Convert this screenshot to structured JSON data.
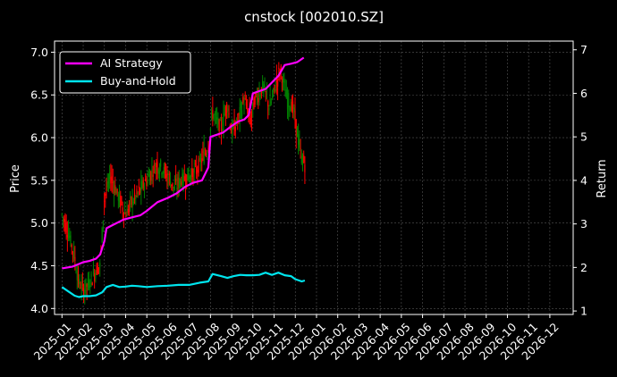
{
  "chart_data": {
    "type": "line",
    "title": "cnstock [002010.SZ]",
    "ylabel": "Price",
    "y2label": "Return",
    "ylim": [
      3.93,
      7.13
    ],
    "y2lim": [
      0.92,
      7.2
    ],
    "yticks": [
      "4.0",
      "4.5",
      "5.0",
      "5.5",
      "6.0",
      "6.5",
      "7.0"
    ],
    "ytick_values": [
      4.0,
      4.5,
      5.0,
      5.5,
      6.0,
      6.5,
      7.0
    ],
    "y2ticks": [
      "1",
      "2",
      "3",
      "4",
      "5",
      "6",
      "7"
    ],
    "y2tick_values": [
      1,
      2,
      3,
      4,
      5,
      6,
      7
    ],
    "xlim": [
      -0.35,
      24.1
    ],
    "xticks": [
      "2025-01",
      "2025-02",
      "2025-03",
      "2025-04",
      "2025-05",
      "2025-06",
      "2025-07",
      "2025-08",
      "2025-09",
      "2025-10",
      "2025-11",
      "2025-12",
      "2026-01",
      "2026-02",
      "2026-03",
      "2026-04",
      "2026-05",
      "2026-06",
      "2026-07",
      "2026-08",
      "2026-09",
      "2026-10",
      "2026-11",
      "2026-12"
    ],
    "grid": true,
    "legend_position": "top-left",
    "candle_up_color": "#008000",
    "candle_down_color": "#ff0000",
    "price_anchors": [
      [
        0.0,
        5.1
      ],
      [
        0.3,
        4.9
      ],
      [
        0.6,
        4.6
      ],
      [
        0.8,
        4.3
      ],
      [
        1.0,
        4.22
      ],
      [
        1.3,
        4.3
      ],
      [
        1.6,
        4.45
      ],
      [
        1.8,
        4.5
      ],
      [
        2.0,
        5.3
      ],
      [
        2.3,
        5.55
      ],
      [
        2.6,
        5.35
      ],
      [
        3.0,
        5.1
      ],
      [
        3.3,
        5.25
      ],
      [
        3.6,
        5.35
      ],
      [
        4.0,
        5.5
      ],
      [
        4.5,
        5.7
      ],
      [
        5.0,
        5.55
      ],
      [
        5.3,
        5.4
      ],
      [
        5.6,
        5.5
      ],
      [
        6.0,
        5.55
      ],
      [
        6.3,
        5.6
      ],
      [
        6.6,
        5.75
      ],
      [
        6.9,
        5.9
      ],
      [
        7.1,
        6.3
      ],
      [
        7.5,
        6.1
      ],
      [
        7.8,
        6.4
      ],
      [
        8.0,
        6.05
      ],
      [
        8.3,
        6.2
      ],
      [
        8.6,
        6.45
      ],
      [
        8.9,
        6.2
      ],
      [
        9.1,
        6.45
      ],
      [
        9.5,
        6.6
      ],
      [
        9.8,
        6.35
      ],
      [
        10.0,
        6.55
      ],
      [
        10.3,
        6.8
      ],
      [
        10.6,
        6.45
      ],
      [
        10.9,
        6.35
      ],
      [
        11.1,
        6.05
      ],
      [
        11.3,
        5.75
      ],
      [
        11.45,
        5.7
      ]
    ],
    "series": [
      {
        "name": "AI Strategy",
        "axis": "right",
        "color": "#ff00ff",
        "points": [
          [
            0,
            1.98
          ],
          [
            0.5,
            2.02
          ],
          [
            0.8,
            2.08
          ],
          [
            1.0,
            2.12
          ],
          [
            1.3,
            2.15
          ],
          [
            1.6,
            2.2
          ],
          [
            1.8,
            2.3
          ],
          [
            2.0,
            2.6
          ],
          [
            2.1,
            2.9
          ],
          [
            2.5,
            3.0
          ],
          [
            2.9,
            3.1
          ],
          [
            3.3,
            3.15
          ],
          [
            3.7,
            3.2
          ],
          [
            4.0,
            3.3
          ],
          [
            4.5,
            3.5
          ],
          [
            5.0,
            3.6
          ],
          [
            5.4,
            3.7
          ],
          [
            5.8,
            3.85
          ],
          [
            6.2,
            3.95
          ],
          [
            6.6,
            4.0
          ],
          [
            6.9,
            4.3
          ],
          [
            7.0,
            5.0
          ],
          [
            7.3,
            5.05
          ],
          [
            7.6,
            5.1
          ],
          [
            8.0,
            5.25
          ],
          [
            8.3,
            5.35
          ],
          [
            8.6,
            5.4
          ],
          [
            8.8,
            5.5
          ],
          [
            9.0,
            6.0
          ],
          [
            9.3,
            6.05
          ],
          [
            9.6,
            6.1
          ],
          [
            10.0,
            6.3
          ],
          [
            10.2,
            6.4
          ],
          [
            10.5,
            6.65
          ],
          [
            10.8,
            6.68
          ],
          [
            11.1,
            6.72
          ],
          [
            11.4,
            6.82
          ]
        ]
      },
      {
        "name": "Buy-and-Hold",
        "axis": "right",
        "color": "#00e5ee",
        "points": [
          [
            0,
            1.55
          ],
          [
            0.3,
            1.45
          ],
          [
            0.6,
            1.35
          ],
          [
            0.8,
            1.32
          ],
          [
            1.0,
            1.34
          ],
          [
            1.3,
            1.34
          ],
          [
            1.6,
            1.36
          ],
          [
            1.9,
            1.43
          ],
          [
            2.1,
            1.55
          ],
          [
            2.4,
            1.6
          ],
          [
            2.7,
            1.55
          ],
          [
            3.0,
            1.56
          ],
          [
            3.3,
            1.58
          ],
          [
            3.6,
            1.57
          ],
          [
            4.0,
            1.55
          ],
          [
            4.5,
            1.57
          ],
          [
            5.0,
            1.58
          ],
          [
            5.5,
            1.6
          ],
          [
            6.0,
            1.6
          ],
          [
            6.5,
            1.65
          ],
          [
            6.9,
            1.68
          ],
          [
            7.1,
            1.85
          ],
          [
            7.5,
            1.8
          ],
          [
            7.8,
            1.76
          ],
          [
            8.1,
            1.8
          ],
          [
            8.4,
            1.83
          ],
          [
            8.7,
            1.82
          ],
          [
            9.0,
            1.82
          ],
          [
            9.3,
            1.83
          ],
          [
            9.6,
            1.88
          ],
          [
            9.9,
            1.83
          ],
          [
            10.2,
            1.88
          ],
          [
            10.5,
            1.82
          ],
          [
            10.8,
            1.8
          ],
          [
            11.0,
            1.73
          ],
          [
            11.3,
            1.68
          ],
          [
            11.45,
            1.7
          ]
        ]
      }
    ]
  }
}
